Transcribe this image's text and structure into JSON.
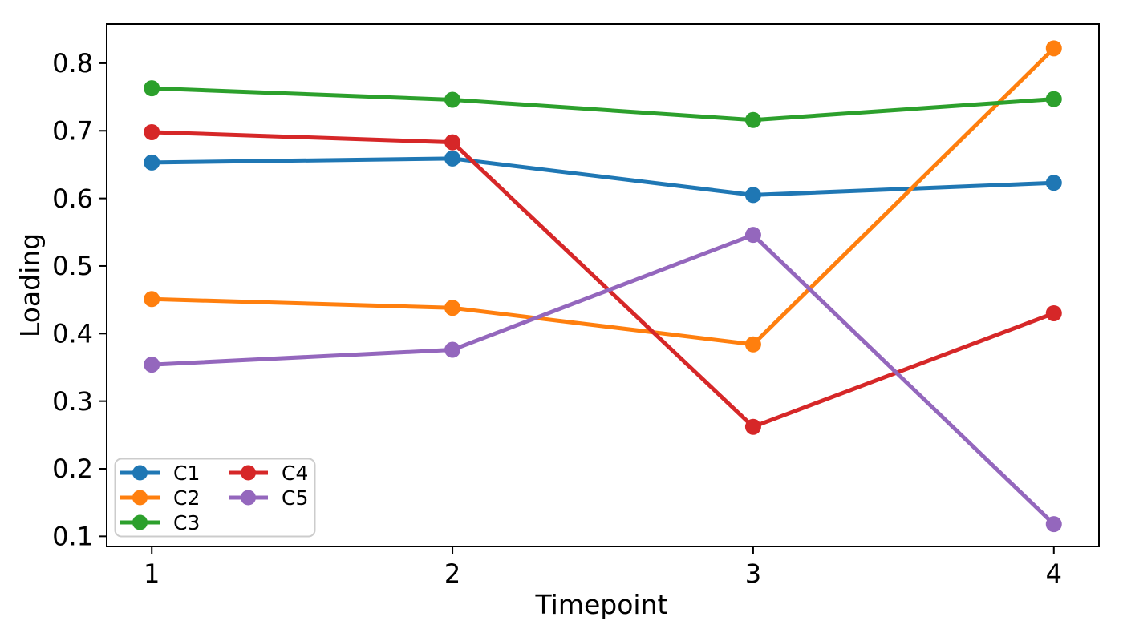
{
  "chart_data": {
    "type": "line",
    "title": "",
    "xlabel": "Timepoint",
    "ylabel": "Loading",
    "x": [
      1,
      2,
      3,
      4
    ],
    "series": [
      {
        "name": "C1",
        "color": "#1f77b4",
        "values": [
          0.653,
          0.659,
          0.605,
          0.623
        ]
      },
      {
        "name": "C2",
        "color": "#ff7f0e",
        "values": [
          0.451,
          0.438,
          0.384,
          0.822
        ]
      },
      {
        "name": "C3",
        "color": "#2ca02c",
        "values": [
          0.763,
          0.746,
          0.716,
          0.747
        ]
      },
      {
        "name": "C4",
        "color": "#d62728",
        "values": [
          0.698,
          0.683,
          0.262,
          0.43
        ]
      },
      {
        "name": "C5",
        "color": "#9467bd",
        "values": [
          0.354,
          0.376,
          0.546,
          0.118
        ]
      }
    ],
    "x_ticks": [
      1,
      2,
      3,
      4
    ],
    "y_ticks": [
      0.1,
      0.2,
      0.3,
      0.4,
      0.5,
      0.6,
      0.7,
      0.8
    ],
    "xlim": [
      0.85,
      4.15
    ],
    "ylim": [
      0.085,
      0.858
    ],
    "grid": false,
    "legend": {
      "position": "lower left",
      "columns": 2,
      "entries": [
        "C1",
        "C2",
        "C3",
        "C4",
        "C5"
      ]
    }
  },
  "styles": {
    "background": "#ffffff",
    "frame_color": "#000000",
    "text_color": "#000000",
    "legend_border_color": "#cccccc",
    "legend_fill": "#ffffff"
  }
}
